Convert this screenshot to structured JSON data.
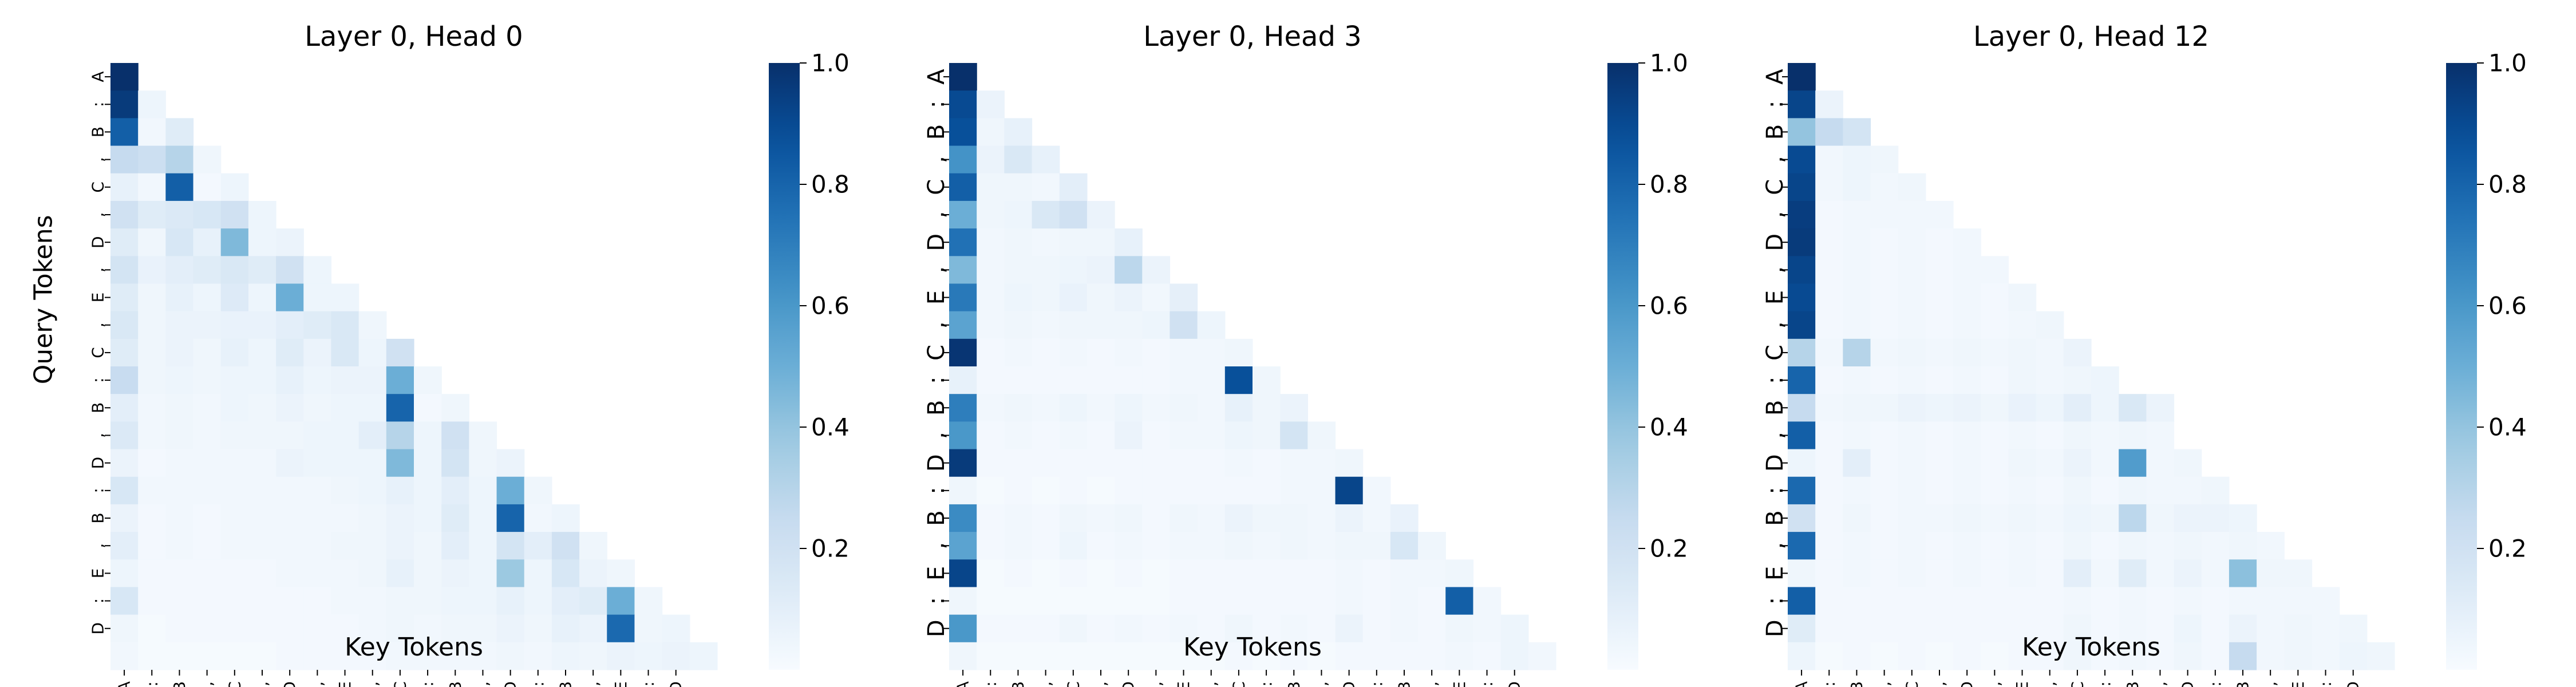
{
  "figure": {
    "colormap": [
      "#f7fbff",
      "#deebf7",
      "#c6dbef",
      "#9ecae1",
      "#6baed6",
      "#4292c6",
      "#2171b5",
      "#08519c",
      "#08306b"
    ]
  },
  "chart_data": [
    {
      "type": "heatmap",
      "title": "Layer 0, Head 0",
      "xlabel": "Key Tokens",
      "ylabel": "Query Tokens",
      "tokens": [
        "A",
        ":",
        "B",
        ",",
        "C",
        ",",
        "D",
        ",",
        "E",
        ",",
        "C",
        ":",
        "B",
        ",",
        "D",
        ":",
        "B",
        ",",
        "E",
        ":",
        "D",
        ""
      ],
      "colorbar": {
        "min": 0.0,
        "max": 1.0,
        "ticks": [
          "0.2",
          "0.4",
          "0.6",
          "0.8",
          "1.0"
        ]
      },
      "rows": [
        [
          1.0
        ],
        [
          0.96,
          0.05
        ],
        [
          0.82,
          0.03,
          0.12
        ],
        [
          0.25,
          0.22,
          0.3,
          0.04
        ],
        [
          0.08,
          0.03,
          0.82,
          0.02,
          0.05
        ],
        [
          0.2,
          0.12,
          0.14,
          0.16,
          0.2,
          0.05
        ],
        [
          0.12,
          0.04,
          0.16,
          0.08,
          0.45,
          0.05,
          0.06
        ],
        [
          0.18,
          0.07,
          0.1,
          0.12,
          0.15,
          0.12,
          0.2,
          0.05
        ],
        [
          0.12,
          0.04,
          0.08,
          0.05,
          0.13,
          0.05,
          0.5,
          0.05,
          0.05
        ],
        [
          0.15,
          0.04,
          0.06,
          0.06,
          0.07,
          0.07,
          0.1,
          0.12,
          0.15,
          0.04
        ],
        [
          0.12,
          0.04,
          0.06,
          0.04,
          0.08,
          0.05,
          0.12,
          0.06,
          0.15,
          0.05,
          0.2
        ],
        [
          0.24,
          0.04,
          0.05,
          0.04,
          0.05,
          0.05,
          0.08,
          0.05,
          0.06,
          0.06,
          0.5,
          0.04
        ],
        [
          0.1,
          0.03,
          0.04,
          0.03,
          0.05,
          0.04,
          0.06,
          0.04,
          0.05,
          0.05,
          0.8,
          0.02,
          0.04
        ],
        [
          0.14,
          0.03,
          0.04,
          0.03,
          0.04,
          0.04,
          0.04,
          0.05,
          0.05,
          0.1,
          0.3,
          0.05,
          0.2,
          0.04
        ],
        [
          0.06,
          0.02,
          0.03,
          0.03,
          0.03,
          0.03,
          0.06,
          0.05,
          0.05,
          0.05,
          0.45,
          0.05,
          0.18,
          0.04,
          0.06
        ],
        [
          0.16,
          0.03,
          0.03,
          0.03,
          0.03,
          0.03,
          0.03,
          0.03,
          0.04,
          0.05,
          0.08,
          0.05,
          0.1,
          0.05,
          0.5,
          0.04
        ],
        [
          0.06,
          0.02,
          0.03,
          0.02,
          0.03,
          0.03,
          0.03,
          0.03,
          0.03,
          0.04,
          0.06,
          0.05,
          0.12,
          0.05,
          0.8,
          0.03,
          0.05
        ],
        [
          0.1,
          0.02,
          0.03,
          0.02,
          0.03,
          0.03,
          0.03,
          0.03,
          0.04,
          0.04,
          0.06,
          0.04,
          0.1,
          0.05,
          0.18,
          0.1,
          0.2,
          0.04
        ],
        [
          0.05,
          0.02,
          0.02,
          0.02,
          0.02,
          0.02,
          0.03,
          0.03,
          0.03,
          0.04,
          0.08,
          0.04,
          0.06,
          0.05,
          0.38,
          0.05,
          0.16,
          0.06,
          0.04
        ],
        [
          0.16,
          0.02,
          0.02,
          0.02,
          0.02,
          0.02,
          0.02,
          0.02,
          0.03,
          0.03,
          0.04,
          0.04,
          0.05,
          0.05,
          0.08,
          0.05,
          0.1,
          0.12,
          0.5,
          0.04
        ],
        [
          0.04,
          0.01,
          0.02,
          0.02,
          0.02,
          0.02,
          0.02,
          0.02,
          0.02,
          0.03,
          0.04,
          0.03,
          0.04,
          0.04,
          0.06,
          0.04,
          0.08,
          0.06,
          0.78,
          0.04,
          0.05
        ],
        [
          0.03,
          0.01,
          0.01,
          0.01,
          0.01,
          0.01,
          0.02,
          0.02,
          0.02,
          0.02,
          0.03,
          0.03,
          0.03,
          0.03,
          0.04,
          0.03,
          0.05,
          0.04,
          0.06,
          0.05,
          0.06,
          0.05
        ]
      ]
    },
    {
      "type": "heatmap",
      "title": "Layer 0, Head 3",
      "xlabel": "Key Tokens",
      "ylabel": "",
      "tokens": [
        "A",
        ":",
        "B",
        ",",
        "C",
        ",",
        "D",
        ",",
        "E",
        ",",
        "C",
        ":",
        "B",
        ",",
        "D",
        ":",
        "B",
        ",",
        "E",
        ":",
        "D",
        ""
      ],
      "colorbar": {
        "min": 0.0,
        "max": 1.0,
        "ticks": [
          "0.2",
          "0.4",
          "0.6",
          "0.8",
          "1.0"
        ]
      },
      "rows": [
        [
          1.0
        ],
        [
          0.9,
          0.06
        ],
        [
          0.88,
          0.04,
          0.08
        ],
        [
          0.62,
          0.06,
          0.15,
          0.08
        ],
        [
          0.82,
          0.04,
          0.04,
          0.03,
          0.1
        ],
        [
          0.5,
          0.04,
          0.05,
          0.15,
          0.2,
          0.06
        ],
        [
          0.75,
          0.03,
          0.04,
          0.03,
          0.04,
          0.04,
          0.08
        ],
        [
          0.45,
          0.03,
          0.04,
          0.04,
          0.05,
          0.06,
          0.28,
          0.06
        ],
        [
          0.72,
          0.03,
          0.05,
          0.04,
          0.07,
          0.04,
          0.06,
          0.03,
          0.09
        ],
        [
          0.55,
          0.03,
          0.04,
          0.03,
          0.04,
          0.04,
          0.04,
          0.05,
          0.2,
          0.05
        ],
        [
          0.98,
          0.02,
          0.03,
          0.02,
          0.03,
          0.02,
          0.03,
          0.02,
          0.03,
          0.03,
          0.04
        ],
        [
          0.08,
          0.02,
          0.02,
          0.02,
          0.02,
          0.02,
          0.02,
          0.02,
          0.03,
          0.03,
          0.88,
          0.04
        ],
        [
          0.7,
          0.03,
          0.04,
          0.03,
          0.05,
          0.03,
          0.05,
          0.03,
          0.04,
          0.03,
          0.08,
          0.04,
          0.06
        ],
        [
          0.6,
          0.02,
          0.03,
          0.02,
          0.03,
          0.02,
          0.06,
          0.02,
          0.03,
          0.03,
          0.05,
          0.04,
          0.18,
          0.04
        ],
        [
          0.96,
          0.02,
          0.02,
          0.02,
          0.02,
          0.02,
          0.02,
          0.02,
          0.02,
          0.02,
          0.03,
          0.02,
          0.03,
          0.03,
          0.04
        ],
        [
          0.04,
          0.01,
          0.02,
          0.01,
          0.02,
          0.01,
          0.02,
          0.02,
          0.02,
          0.02,
          0.02,
          0.02,
          0.03,
          0.03,
          0.92,
          0.03
        ],
        [
          0.65,
          0.02,
          0.03,
          0.02,
          0.04,
          0.03,
          0.04,
          0.02,
          0.04,
          0.03,
          0.06,
          0.04,
          0.04,
          0.03,
          0.06,
          0.03,
          0.07
        ],
        [
          0.55,
          0.02,
          0.03,
          0.02,
          0.05,
          0.02,
          0.03,
          0.02,
          0.03,
          0.03,
          0.04,
          0.03,
          0.04,
          0.03,
          0.04,
          0.04,
          0.16,
          0.04
        ],
        [
          0.92,
          0.01,
          0.02,
          0.01,
          0.02,
          0.01,
          0.02,
          0.01,
          0.02,
          0.02,
          0.02,
          0.02,
          0.02,
          0.02,
          0.03,
          0.02,
          0.03,
          0.03,
          0.04
        ],
        [
          0.04,
          0.01,
          0.01,
          0.01,
          0.01,
          0.01,
          0.01,
          0.01,
          0.02,
          0.02,
          0.02,
          0.02,
          0.02,
          0.02,
          0.03,
          0.02,
          0.03,
          0.02,
          0.82,
          0.03
        ],
        [
          0.6,
          0.02,
          0.02,
          0.02,
          0.04,
          0.02,
          0.03,
          0.02,
          0.03,
          0.02,
          0.04,
          0.02,
          0.03,
          0.02,
          0.06,
          0.02,
          0.03,
          0.02,
          0.04,
          0.03,
          0.05
        ],
        [
          0.04,
          0.01,
          0.01,
          0.01,
          0.01,
          0.01,
          0.01,
          0.01,
          0.01,
          0.01,
          0.02,
          0.01,
          0.02,
          0.01,
          0.02,
          0.02,
          0.02,
          0.02,
          0.03,
          0.02,
          0.05,
          0.03
        ]
      ]
    },
    {
      "type": "heatmap",
      "title": "Layer 0, Head 12",
      "xlabel": "Key Tokens",
      "ylabel": "",
      "tokens": [
        "A",
        ":",
        "B",
        ",",
        "C",
        ",",
        "D",
        ",",
        "E",
        ",",
        "C",
        ":",
        "B",
        ",",
        "D",
        ":",
        "B",
        ",",
        "E",
        ":",
        "D",
        ""
      ],
      "colorbar": {
        "min": 0.0,
        "max": 1.0,
        "ticks": [
          "0.2",
          "0.4",
          "0.6",
          "0.8",
          "1.0"
        ]
      },
      "rows": [
        [
          1.0
        ],
        [
          0.92,
          0.06
        ],
        [
          0.4,
          0.25,
          0.18
        ],
        [
          0.9,
          0.03,
          0.05,
          0.04
        ],
        [
          0.92,
          0.03,
          0.05,
          0.03,
          0.04
        ],
        [
          0.95,
          0.02,
          0.03,
          0.03,
          0.03,
          0.03
        ],
        [
          0.96,
          0.02,
          0.03,
          0.02,
          0.03,
          0.02,
          0.03
        ],
        [
          0.92,
          0.02,
          0.03,
          0.02,
          0.03,
          0.02,
          0.03,
          0.03
        ],
        [
          0.9,
          0.02,
          0.03,
          0.02,
          0.03,
          0.02,
          0.03,
          0.02,
          0.04
        ],
        [
          0.92,
          0.02,
          0.03,
          0.02,
          0.03,
          0.02,
          0.03,
          0.02,
          0.03,
          0.04
        ],
        [
          0.3,
          0.03,
          0.3,
          0.03,
          0.04,
          0.03,
          0.04,
          0.03,
          0.04,
          0.03,
          0.06
        ],
        [
          0.8,
          0.02,
          0.03,
          0.02,
          0.03,
          0.02,
          0.03,
          0.02,
          0.04,
          0.03,
          0.04,
          0.05
        ],
        [
          0.25,
          0.03,
          0.04,
          0.04,
          0.06,
          0.05,
          0.06,
          0.04,
          0.07,
          0.05,
          0.1,
          0.05,
          0.15,
          0.06
        ],
        [
          0.82,
          0.02,
          0.03,
          0.02,
          0.03,
          0.02,
          0.03,
          0.02,
          0.03,
          0.02,
          0.04,
          0.03,
          0.04,
          0.03
        ],
        [
          0.05,
          0.02,
          0.1,
          0.02,
          0.03,
          0.02,
          0.03,
          0.02,
          0.04,
          0.03,
          0.06,
          0.03,
          0.58,
          0.03,
          0.04
        ],
        [
          0.78,
          0.02,
          0.03,
          0.02,
          0.03,
          0.02,
          0.03,
          0.02,
          0.03,
          0.02,
          0.04,
          0.02,
          0.04,
          0.03,
          0.03,
          0.04
        ],
        [
          0.2,
          0.02,
          0.04,
          0.02,
          0.03,
          0.03,
          0.04,
          0.03,
          0.04,
          0.03,
          0.05,
          0.04,
          0.28,
          0.04,
          0.06,
          0.06,
          0.05
        ],
        [
          0.78,
          0.02,
          0.03,
          0.02,
          0.03,
          0.02,
          0.03,
          0.02,
          0.03,
          0.02,
          0.04,
          0.02,
          0.04,
          0.03,
          0.04,
          0.03,
          0.04,
          0.03
        ],
        [
          0.04,
          0.02,
          0.03,
          0.02,
          0.03,
          0.02,
          0.03,
          0.02,
          0.03,
          0.02,
          0.1,
          0.03,
          0.12,
          0.03,
          0.06,
          0.03,
          0.42,
          0.04,
          0.04
        ],
        [
          0.82,
          0.02,
          0.02,
          0.02,
          0.02,
          0.02,
          0.02,
          0.02,
          0.02,
          0.02,
          0.03,
          0.02,
          0.03,
          0.02,
          0.03,
          0.02,
          0.03,
          0.03,
          0.03,
          0.03
        ],
        [
          0.12,
          0.02,
          0.02,
          0.02,
          0.02,
          0.02,
          0.02,
          0.02,
          0.02,
          0.02,
          0.04,
          0.02,
          0.03,
          0.02,
          0.05,
          0.02,
          0.06,
          0.03,
          0.04,
          0.03,
          0.04
        ],
        [
          0.05,
          0.01,
          0.02,
          0.01,
          0.02,
          0.01,
          0.02,
          0.01,
          0.02,
          0.02,
          0.04,
          0.02,
          0.03,
          0.02,
          0.04,
          0.02,
          0.25,
          0.03,
          0.04,
          0.03,
          0.05,
          0.04
        ]
      ]
    }
  ]
}
